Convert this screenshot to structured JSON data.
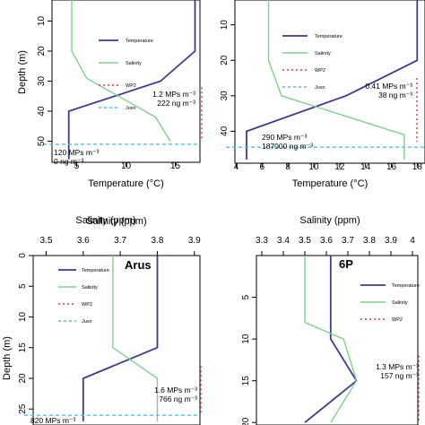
{
  "chart_data": [
    {
      "type": "line",
      "panel": "top-left",
      "title": "",
      "xlabel": "Temperature (°C)",
      "ylabel": "Depth (m)",
      "xticks": [
        5,
        10,
        15
      ],
      "yticks": [
        10,
        20,
        30,
        40,
        50
      ],
      "xlim": [
        2.5,
        17.5
      ],
      "ylim": [
        3,
        57
      ],
      "series": [
        {
          "name": "Temperature",
          "color": "#3b3b8f",
          "points": [
            [
              17,
              0
            ],
            [
              17,
              20
            ],
            [
              13.5,
              30
            ],
            [
              4.2,
              40
            ],
            [
              4.2,
              56
            ]
          ]
        },
        {
          "name": "Salinity",
          "color": "#7ed18c",
          "points": [
            [
              4.5,
              0
            ],
            [
              4.5,
              20
            ],
            [
              6,
              29
            ],
            [
              13,
              42
            ],
            [
              14.5,
              50
            ]
          ]
        }
      ],
      "legend": [
        "Temperature",
        "Salinity",
        "WP2",
        "Juvo"
      ],
      "wp2_depth": [
        32,
        50
      ],
      "juvo_depth": 51,
      "annotations": [
        {
          "lines": [
            "1.2 MPs m⁻³",
            "222 ng m⁻³"
          ]
        },
        {
          "lines": [
            "120 MPs m⁻³",
            "0 ng m⁻³"
          ]
        }
      ]
    },
    {
      "type": "line",
      "panel": "top-right",
      "title": "",
      "xlabel": "Temperature (°C)",
      "ylabel": "",
      "xticks": [
        4,
        6,
        8,
        10,
        12,
        14,
        16,
        18
      ],
      "yticks": [
        10,
        20,
        30,
        40
      ],
      "xlim": [
        3.9,
        18.6
      ],
      "ylim": [
        3,
        49
      ],
      "series": [
        {
          "name": "Temperature",
          "color": "#3b3b8f",
          "points": [
            [
              18,
              0
            ],
            [
              18,
              20
            ],
            [
              12.5,
              30
            ],
            [
              4.8,
              40
            ],
            [
              4.8,
              48
            ]
          ]
        },
        {
          "name": "Salinity",
          "color": "#7ed18c",
          "points": [
            [
              6.5,
              0
            ],
            [
              6.5,
              20
            ],
            [
              7.5,
              30
            ],
            [
              17,
              41
            ],
            [
              17,
              48
            ]
          ]
        }
      ],
      "legend": [
        "Temperature",
        "Salinity",
        "WP2",
        "Juvo"
      ],
      "wp2_depth": [
        25,
        43
      ],
      "juvo_depth": 44.5,
      "annotations": [
        {
          "lines": [
            "0.41 MPs m⁻³",
            "38 ng m⁻³"
          ]
        },
        {
          "lines": [
            "290 MPs m⁻³",
            "187000 ng m⁻³"
          ]
        }
      ]
    },
    {
      "type": "line",
      "panel": "bottom-left",
      "title": "Arus",
      "xlabel": "Salinity (ppm)",
      "ylabel": "Depth (m)",
      "xticks": [
        3.5,
        3.6,
        3.7,
        3.8,
        3.9
      ],
      "yticks": [
        0,
        5,
        10,
        15,
        20,
        25
      ],
      "xlim": [
        3.465,
        3.915
      ],
      "ylim": [
        0,
        27.6
      ],
      "series": [
        {
          "name": "Temperature",
          "color": "#3b3b8f",
          "points": [
            [
              3.8,
              0
            ],
            [
              3.8,
              15
            ],
            [
              3.6,
              20
            ],
            [
              3.6,
              27
            ]
          ]
        },
        {
          "name": "Salinity",
          "color": "#7ed18c",
          "points": [
            [
              3.68,
              0
            ],
            [
              3.68,
              15
            ],
            [
              3.8,
              20
            ],
            [
              3.8,
              27
            ]
          ]
        }
      ],
      "legend": [
        "Temperature",
        "Salinity",
        "WP2",
        "Juvo"
      ],
      "wp2_depth": [
        18,
        26
      ],
      "juvo_depth": 26,
      "annotations": [
        {
          "lines": [
            "1.6 MPs m⁻³",
            "766 ng m⁻³"
          ]
        },
        {
          "lines": [
            "820 MPs m⁻³"
          ]
        }
      ]
    },
    {
      "type": "line",
      "panel": "bottom-right",
      "title": "6P",
      "xlabel": "Salinity (ppm)",
      "ylabel": "",
      "xticks": [
        3.3,
        3.4,
        3.5,
        3.6,
        3.7,
        3.8,
        3.9,
        4.0
      ],
      "yticks": [
        5,
        10,
        15,
        20
      ],
      "xlim": [
        3.275,
        4.025
      ],
      "ylim": [
        0,
        20.3
      ],
      "series": [
        {
          "name": "Temperature",
          "color": "#3b3b8f",
          "points": [
            [
              3.62,
              0
            ],
            [
              3.62,
              10
            ],
            [
              3.74,
              15
            ],
            [
              3.5,
              20
            ]
          ]
        },
        {
          "name": "Salinity",
          "color": "#7ed18c",
          "points": [
            [
              3.5,
              0
            ],
            [
              3.5,
              8
            ],
            [
              3.68,
              10
            ],
            [
              3.74,
              15
            ],
            [
              3.62,
              20
            ]
          ]
        }
      ],
      "legend": [
        "Temperature",
        "Salinity",
        "WP2"
      ],
      "wp2_depth": [
        12,
        20
      ],
      "annotations": [
        {
          "lines": [
            "1.3 MPs m⁻³",
            "157 ng m⁻³"
          ]
        }
      ]
    }
  ]
}
